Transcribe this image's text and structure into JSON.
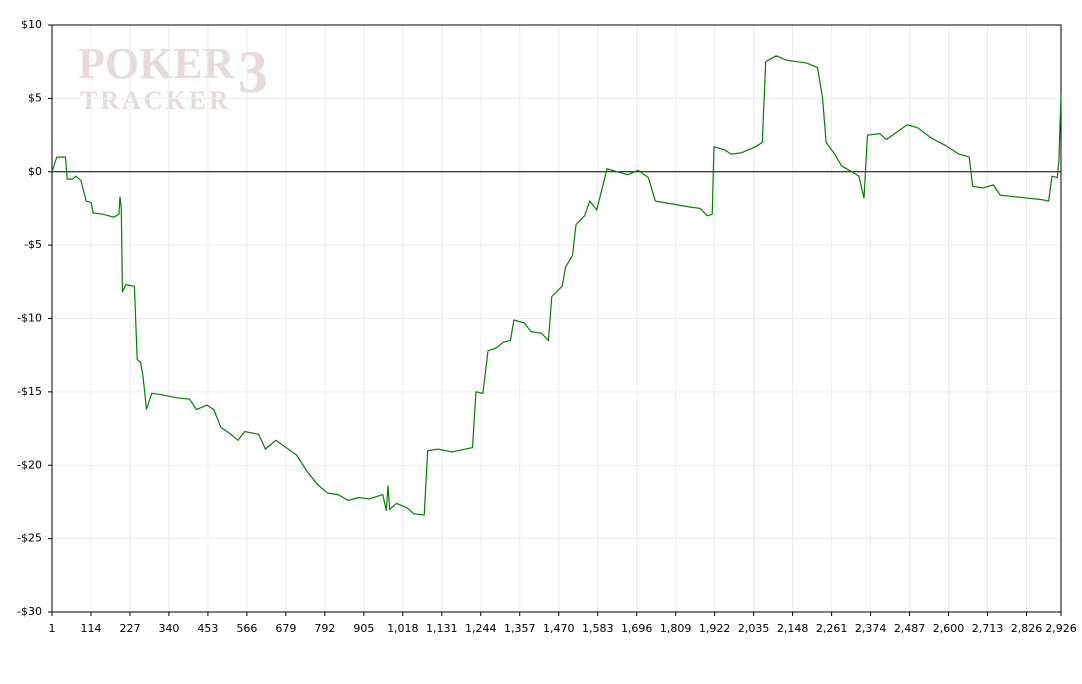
{
  "chart_data": {
    "type": "line",
    "watermark": {
      "line1": "POKER",
      "line2": "TRACKER",
      "mark": "3"
    },
    "x": [
      1,
      15,
      40,
      45,
      60,
      70,
      85,
      100,
      115,
      120,
      150,
      180,
      195,
      198,
      202,
      205,
      215,
      240,
      248,
      258,
      265,
      275,
      290,
      320,
      360,
      400,
      420,
      450,
      470,
      490,
      520,
      540,
      560,
      600,
      620,
      650,
      680,
      710,
      740,
      770,
      800,
      830,
      860,
      890,
      920,
      960,
      970,
      975,
      980,
      1000,
      1030,
      1050,
      1080,
      1090,
      1120,
      1160,
      1200,
      1220,
      1230,
      1250,
      1265,
      1290,
      1310,
      1330,
      1340,
      1370,
      1390,
      1420,
      1440,
      1450,
      1480,
      1490,
      1510,
      1520,
      1545,
      1560,
      1580,
      1595,
      1610,
      1640,
      1670,
      1700,
      1730,
      1750,
      1800,
      1850,
      1880,
      1900,
      1915,
      1920,
      1950,
      1970,
      2000,
      2040,
      2060,
      2070,
      2100,
      2130,
      2160,
      2190,
      2220,
      2235,
      2245,
      2270,
      2290,
      2320,
      2340,
      2355,
      2365,
      2400,
      2420,
      2450,
      2480,
      2510,
      2550,
      2590,
      2630,
      2660,
      2670,
      2700,
      2730,
      2750,
      2790,
      2830,
      2870,
      2890,
      2900,
      2915,
      2920,
      2926
    ],
    "values": [
      0,
      1,
      1,
      -0.5,
      -0.5,
      -0.3,
      -0.6,
      -2,
      -2.1,
      -2.8,
      -2.9,
      -3.1,
      -2.9,
      -1.7,
      -2.5,
      -8.2,
      -7.7,
      -7.8,
      -12.8,
      -13,
      -14,
      -16.2,
      -15.1,
      -15.2,
      -15.4,
      -15.5,
      -16.2,
      -15.9,
      -16.2,
      -17.4,
      -17.9,
      -18.3,
      -17.7,
      -17.9,
      -18.9,
      -18.3,
      -18.8,
      -19.3,
      -20.4,
      -21.3,
      -21.9,
      -22,
      -22.4,
      -22.2,
      -22.3,
      -22,
      -23.1,
      -21.4,
      -23,
      -22.6,
      -22.9,
      -23.3,
      -23.4,
      -19,
      -18.9,
      -19.1,
      -18.9,
      -18.8,
      -15,
      -15.1,
      -12.2,
      -12,
      -11.6,
      -11.5,
      -10.1,
      -10.3,
      -10.9,
      -11,
      -11.5,
      -8.5,
      -7.8,
      -6.5,
      -5.7,
      -3.6,
      -3,
      -2,
      -2.6,
      -1.2,
      0.2,
      0,
      -0.2,
      0.1,
      -0.4,
      -2,
      -2.2,
      -2.4,
      -2.5,
      -3,
      -2.9,
      1.7,
      1.5,
      1.2,
      1.3,
      1.7,
      2,
      7.5,
      7.9,
      7.6,
      7.5,
      7.4,
      7.1,
      5,
      2,
      1.2,
      0.4,
      0,
      -0.3,
      -1.8,
      2.5,
      2.6,
      2.2,
      2.7,
      3.2,
      3,
      2.3,
      1.8,
      1.2,
      1,
      -1,
      -1.1,
      -0.9,
      -1.6,
      -1.7,
      -1.8,
      -1.9,
      -2,
      -0.3,
      -0.4,
      0.7,
      5.3
    ],
    "color": "#008000",
    "xlim": [
      1,
      2926
    ],
    "xticks": [
      1,
      114,
      227,
      340,
      453,
      566,
      679,
      792,
      905,
      {
        "value": 1018,
        "label": "1,018"
      },
      {
        "value": 1131,
        "label": "1,131"
      },
      {
        "value": 1244,
        "label": "1,244"
      },
      {
        "value": 1357,
        "label": "1,357"
      },
      {
        "value": 1470,
        "label": "1,470"
      },
      {
        "value": 1583,
        "label": "1,583"
      },
      {
        "value": 1696,
        "label": "1,696"
      },
      {
        "value": 1809,
        "label": "1,809"
      },
      {
        "value": 1922,
        "label": "1,922"
      },
      {
        "value": 2035,
        "label": "2,035"
      },
      {
        "value": 2148,
        "label": "2,148"
      },
      {
        "value": 2261,
        "label": "2,261"
      },
      {
        "value": 2374,
        "label": "2,374"
      },
      {
        "value": 2487,
        "label": "2,487"
      },
      {
        "value": 2600,
        "label": "2,600"
      },
      {
        "value": 2713,
        "label": "2,713"
      },
      {
        "value": 2826,
        "label": "2,826"
      },
      {
        "value": 2926,
        "label": "2,926"
      }
    ],
    "ylim": [
      -30,
      10
    ],
    "yticks": [
      {
        "value": 10,
        "label": "$10"
      },
      {
        "value": 5,
        "label": "$5"
      },
      {
        "value": 0,
        "label": "$0"
      },
      {
        "value": -5,
        "label": "-$5"
      },
      {
        "value": -10,
        "label": "-$10"
      },
      {
        "value": -15,
        "label": "-$15"
      },
      {
        "value": -20,
        "label": "-$20"
      },
      {
        "value": -25,
        "label": "-$25"
      },
      {
        "value": -30,
        "label": "-$30"
      }
    ],
    "grid": true,
    "zero_line": true
  }
}
